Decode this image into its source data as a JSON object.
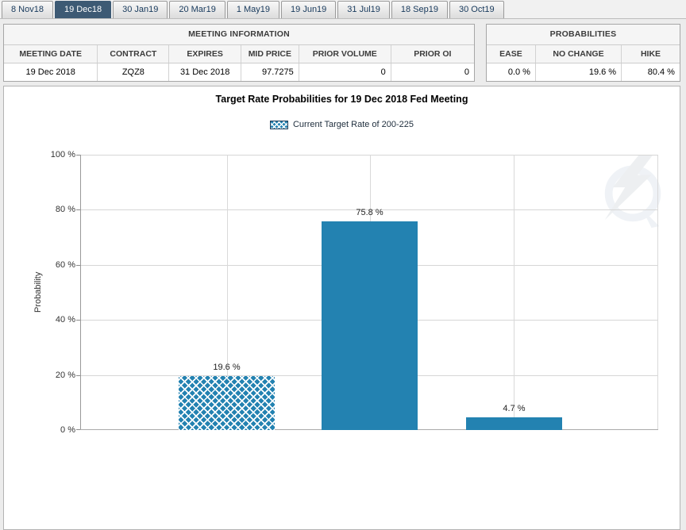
{
  "tabs": {
    "items": [
      {
        "label": "8 Nov18",
        "selected": false
      },
      {
        "label": "19 Dec18",
        "selected": true
      },
      {
        "label": "30 Jan19",
        "selected": false
      },
      {
        "label": "20 Mar19",
        "selected": false
      },
      {
        "label": "1 May19",
        "selected": false
      },
      {
        "label": "19 Jun19",
        "selected": false
      },
      {
        "label": "31 Jul19",
        "selected": false
      },
      {
        "label": "18 Sep19",
        "selected": false
      },
      {
        "label": "30 Oct19",
        "selected": false
      }
    ]
  },
  "meeting_info": {
    "title": "MEETING INFORMATION",
    "columns": [
      "MEETING DATE",
      "CONTRACT",
      "EXPIRES",
      "MID PRICE",
      "PRIOR VOLUME",
      "PRIOR OI"
    ],
    "row": {
      "meeting_date": "19 Dec 2018",
      "contract": "ZQZ8",
      "expires": "31 Dec 2018",
      "mid_price": "97.7275",
      "prior_volume": "0",
      "prior_oi": "0"
    }
  },
  "probabilities": {
    "title": "PROBABILITIES",
    "columns": [
      "EASE",
      "NO CHANGE",
      "HIKE"
    ],
    "row": {
      "ease": "0.0 %",
      "no_change": "19.6 %",
      "hike": "80.4 %"
    }
  },
  "chart_data": {
    "type": "bar",
    "title": "Target Rate Probabilities for 19 Dec 2018 Fed Meeting",
    "ylabel": "Probability",
    "ylim": [
      0,
      100
    ],
    "yticks": [
      "0 %",
      "20 %",
      "40 %",
      "60 %",
      "80 %",
      "100 %"
    ],
    "grid": true,
    "legend_position": "top-center",
    "legend": [
      {
        "label": "Current Target Rate of 200-225",
        "style": "crosshatch"
      }
    ],
    "bar_color": "#2382b1",
    "bars": [
      {
        "value": 19.6,
        "label": "19.6 %",
        "style": "crosshatch"
      },
      {
        "value": 75.8,
        "label": "75.8 %",
        "style": "solid"
      },
      {
        "value": 4.7,
        "label": "4.7 %",
        "style": "solid"
      }
    ]
  }
}
